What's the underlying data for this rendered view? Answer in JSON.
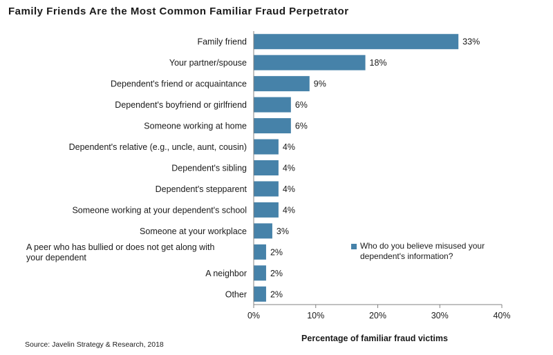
{
  "title": "Family Friends Are the Most Common Familiar Fraud Perpetrator",
  "source": "Source: Javelin Strategy & Research, 2018",
  "colors": {
    "bar": "#4682a9",
    "axis": "#808080"
  },
  "chart_data": {
    "type": "bar",
    "orientation": "horizontal",
    "categories": [
      "Family friend",
      "Your partner/spouse",
      "Dependent's friend or acquaintance",
      "Dependent's boyfriend or girlfriend",
      "Someone working at home",
      "Dependent's relative (e.g., uncle, aunt, cousin)",
      "Dependent's sibling",
      "Dependent's stepparent",
      "Someone working at your dependent's school",
      "Someone at your workplace",
      "A peer who has bullied or does not get along with your dependent",
      "A neighbor",
      "Other"
    ],
    "series": [
      {
        "name": "Who do you believe misused your dependent's information?",
        "values": [
          33,
          18,
          9,
          6,
          6,
          4,
          4,
          4,
          4,
          3,
          2,
          2,
          2
        ],
        "data_labels": [
          "33%",
          "18%",
          "9%",
          "6%",
          "6%",
          "4%",
          "4%",
          "4%",
          "4%",
          "3%",
          "2%",
          "2%",
          "2%"
        ]
      }
    ],
    "xlabel": "Percentage of familiar fraud victims",
    "ylabel": "",
    "xlim": [
      0,
      40
    ],
    "xticks": [
      "0%",
      "10%",
      "20%",
      "30%",
      "40%"
    ],
    "legend_position": "right",
    "grid": false
  }
}
